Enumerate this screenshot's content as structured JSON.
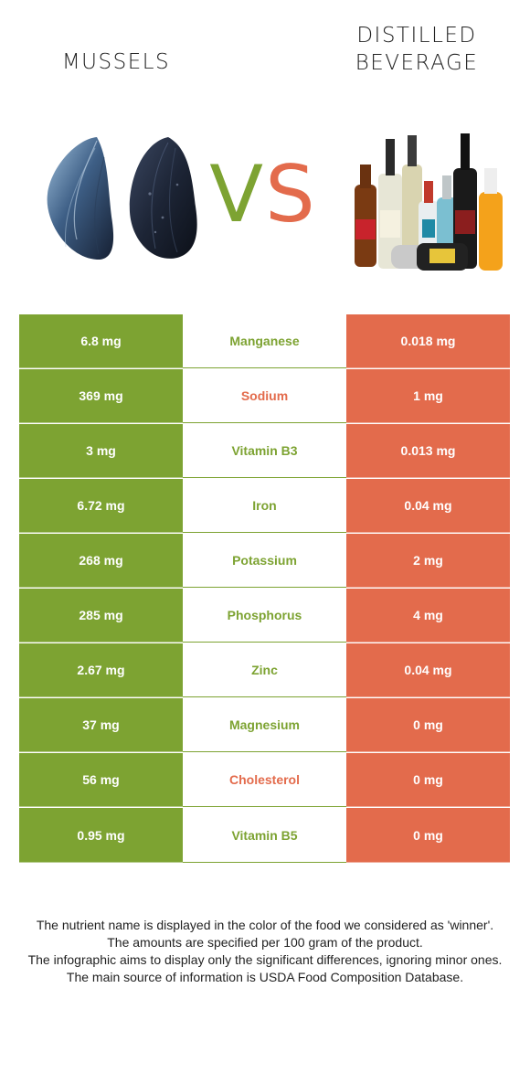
{
  "header": {
    "left_food": "MUSSELS",
    "right_food_line1": "DISTILLED",
    "right_food_line2": "BEVERAGE",
    "vs_v": "V",
    "vs_s": "S"
  },
  "colors": {
    "left_accent": "#7da332",
    "right_accent": "#e36b4c"
  },
  "rows": [
    {
      "left": "6.8 mg",
      "nutrient": "Manganese",
      "right": "0.018 mg",
      "winner": "left"
    },
    {
      "left": "369 mg",
      "nutrient": "Sodium",
      "right": "1 mg",
      "winner": "right"
    },
    {
      "left": "3 mg",
      "nutrient": "Vitamin B3",
      "right": "0.013 mg",
      "winner": "left"
    },
    {
      "left": "6.72 mg",
      "nutrient": "Iron",
      "right": "0.04 mg",
      "winner": "left"
    },
    {
      "left": "268 mg",
      "nutrient": "Potassium",
      "right": "2 mg",
      "winner": "left"
    },
    {
      "left": "285 mg",
      "nutrient": "Phosphorus",
      "right": "4 mg",
      "winner": "left"
    },
    {
      "left": "2.67 mg",
      "nutrient": "Zinc",
      "right": "0.04 mg",
      "winner": "left"
    },
    {
      "left": "37 mg",
      "nutrient": "Magnesium",
      "right": "0 mg",
      "winner": "left"
    },
    {
      "left": "56 mg",
      "nutrient": "Cholesterol",
      "right": "0 mg",
      "winner": "right"
    },
    {
      "left": "0.95 mg",
      "nutrient": "Vitamin B5",
      "right": "0 mg",
      "winner": "left"
    }
  ],
  "footer": {
    "line1": "The nutrient name is displayed in the color of the food we considered as 'winner'.",
    "line2": "The amounts are specified per 100 gram of the product.",
    "line3": "The infographic aims to display only the significant differences, ignoring minor ones.",
    "line4": "The main source of information is USDA Food Composition Database."
  }
}
